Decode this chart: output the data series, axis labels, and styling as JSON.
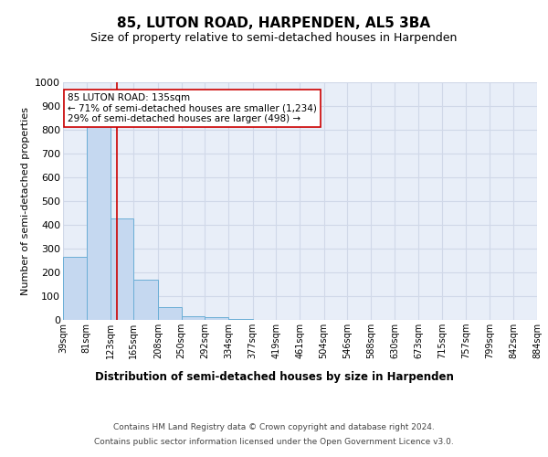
{
  "title": "85, LUTON ROAD, HARPENDEN, AL5 3BA",
  "subtitle": "Size of property relative to semi-detached houses in Harpenden",
  "xlabel": "Distribution of semi-detached houses by size in Harpenden",
  "ylabel": "Number of semi-detached properties",
  "bin_labels": [
    "39sqm",
    "81sqm",
    "123sqm",
    "165sqm",
    "208sqm",
    "250sqm",
    "292sqm",
    "334sqm",
    "377sqm",
    "419sqm",
    "461sqm",
    "504sqm",
    "546sqm",
    "588sqm",
    "630sqm",
    "673sqm",
    "715sqm",
    "757sqm",
    "799sqm",
    "842sqm",
    "884sqm"
  ],
  "bin_edges": [
    39,
    81,
    123,
    165,
    208,
    250,
    292,
    334,
    377,
    419,
    461,
    504,
    546,
    588,
    630,
    673,
    715,
    757,
    799,
    842,
    884
  ],
  "bar_heights": [
    265,
    825,
    425,
    168,
    52,
    15,
    10,
    2,
    0,
    0,
    0,
    0,
    0,
    0,
    0,
    0,
    0,
    0,
    0,
    0
  ],
  "bar_color": "#c5d8f0",
  "bar_edge_color": "#6baed6",
  "subject_value": 135,
  "subject_label": "85 LUTON ROAD: 135sqm",
  "pct_smaller": 71,
  "count_smaller": 1234,
  "pct_larger": 29,
  "count_larger": 498,
  "vline_color": "#cc0000",
  "annotation_box_edge": "#cc0000",
  "ylim": [
    0,
    1000
  ],
  "yticks": [
    0,
    100,
    200,
    300,
    400,
    500,
    600,
    700,
    800,
    900,
    1000
  ],
  "grid_color": "#d0d8e8",
  "bg_color": "#e8eef8",
  "footer_line1": "Contains HM Land Registry data © Crown copyright and database right 2024.",
  "footer_line2": "Contains public sector information licensed under the Open Government Licence v3.0."
}
